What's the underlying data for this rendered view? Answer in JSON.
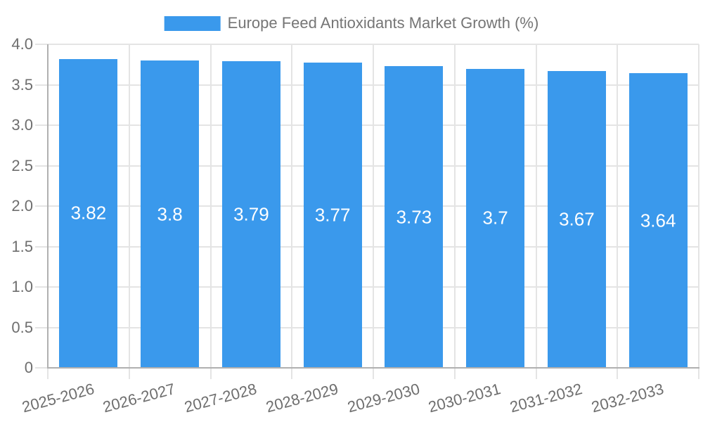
{
  "legend": {
    "label": "Europe Feed Antioxidants Market Growth (%)"
  },
  "colors": {
    "bar": "#3A99EC",
    "grid": "#E4E4E4",
    "axis": "#B0B0B0",
    "text": "#6E6E6E",
    "legend_text": "#757575",
    "value_label": "#FFFFFF",
    "background": "#FFFFFF"
  },
  "chart_data": {
    "type": "bar",
    "title": "Europe Feed Antioxidants Market Growth (%)",
    "categories": [
      "2025-2026",
      "2026-2027",
      "2027-2028",
      "2028-2029",
      "2029-2030",
      "2030-2031",
      "2031-2032",
      "2032-2033"
    ],
    "values": [
      3.82,
      3.8,
      3.79,
      3.77,
      3.73,
      3.7,
      3.67,
      3.64
    ],
    "value_labels": [
      "3.82",
      "3.8",
      "3.79",
      "3.77",
      "3.73",
      "3.7",
      "3.67",
      "3.64"
    ],
    "xlabel": "",
    "ylabel": "",
    "ylim": [
      0,
      4
    ],
    "ytick_step": 0.5,
    "ytick_labels": [
      "4.0",
      "3.5",
      "3.0",
      "2.5",
      "2.0",
      "1.5",
      "1.0",
      "0.5",
      "0"
    ],
    "grid": true,
    "legend_position": "top-center",
    "bar_label_position": "center",
    "x_tick_rotation_deg": -15
  }
}
